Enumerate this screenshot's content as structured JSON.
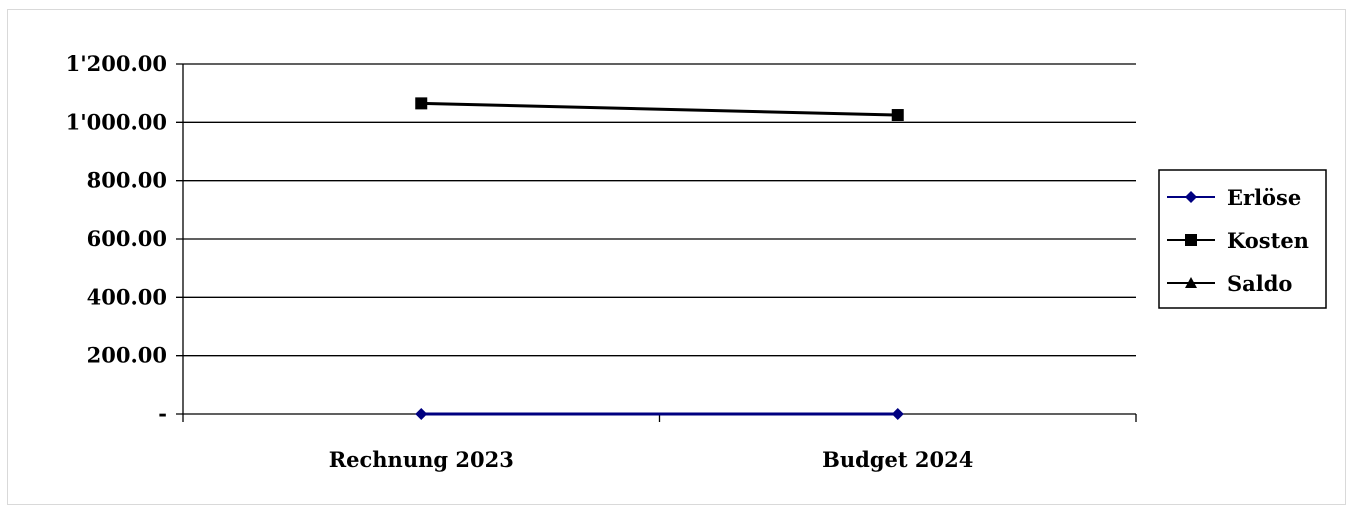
{
  "chart_data": {
    "type": "line",
    "categories": [
      "Rechnung 2023",
      "Budget 2024"
    ],
    "series": [
      {
        "name": "Erlöse",
        "values": [
          0,
          0
        ],
        "color": "#000080",
        "marker": "diamond"
      },
      {
        "name": "Kosten",
        "values": [
          1065,
          1025
        ],
        "color": "#000000",
        "marker": "square"
      },
      {
        "name": "Saldo",
        "values": [
          null,
          null
        ],
        "color": "#000000",
        "marker": "triangle"
      }
    ],
    "y_ticks": [
      {
        "value": 1200,
        "label": "1'200.00"
      },
      {
        "value": 1000,
        "label": "1'000.00"
      },
      {
        "value": 800,
        "label": "800.00"
      },
      {
        "value": 600,
        "label": "600.00"
      },
      {
        "value": 400,
        "label": "400.00"
      },
      {
        "value": 200,
        "label": "200.00"
      },
      {
        "value": 0,
        "label": "-"
      }
    ],
    "ylim": [
      0,
      1200
    ],
    "grid": true,
    "legend_position": "right"
  }
}
